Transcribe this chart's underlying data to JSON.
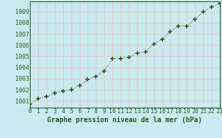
{
  "x": [
    0,
    1,
    2,
    3,
    4,
    5,
    6,
    7,
    8,
    9,
    10,
    11,
    12,
    13,
    14,
    15,
    16,
    17,
    18,
    19,
    20,
    21,
    22,
    23
  ],
  "y": [
    1000.7,
    1001.2,
    1001.4,
    1001.7,
    1001.9,
    1002.0,
    1002.4,
    1002.9,
    1003.2,
    1003.7,
    1004.8,
    1004.8,
    1004.9,
    1005.3,
    1005.4,
    1006.1,
    1006.5,
    1007.2,
    1007.7,
    1007.7,
    1008.3,
    1009.0,
    1009.4,
    1009.7
  ],
  "line_color": "#2d5a1b",
  "marker_color": "#2d5a1b",
  "bg_color": "#c8eaf0",
  "major_grid_color": "#e8c8c8",
  "minor_grid_color": "#dde8e8",
  "xlabel": "Graphe pression niveau de la mer (hPa)",
  "xlabel_color": "#2d5a1b",
  "ylabel_ticks": [
    1001,
    1002,
    1003,
    1004,
    1005,
    1006,
    1007,
    1008,
    1009
  ],
  "ylim": [
    1000.4,
    1009.9
  ],
  "xlim": [
    0,
    23
  ],
  "tick_label_color": "#2d5a1b",
  "xlabel_fontsize": 7,
  "tick_fontsize": 6,
  "spine_color": "#2d5a1b"
}
